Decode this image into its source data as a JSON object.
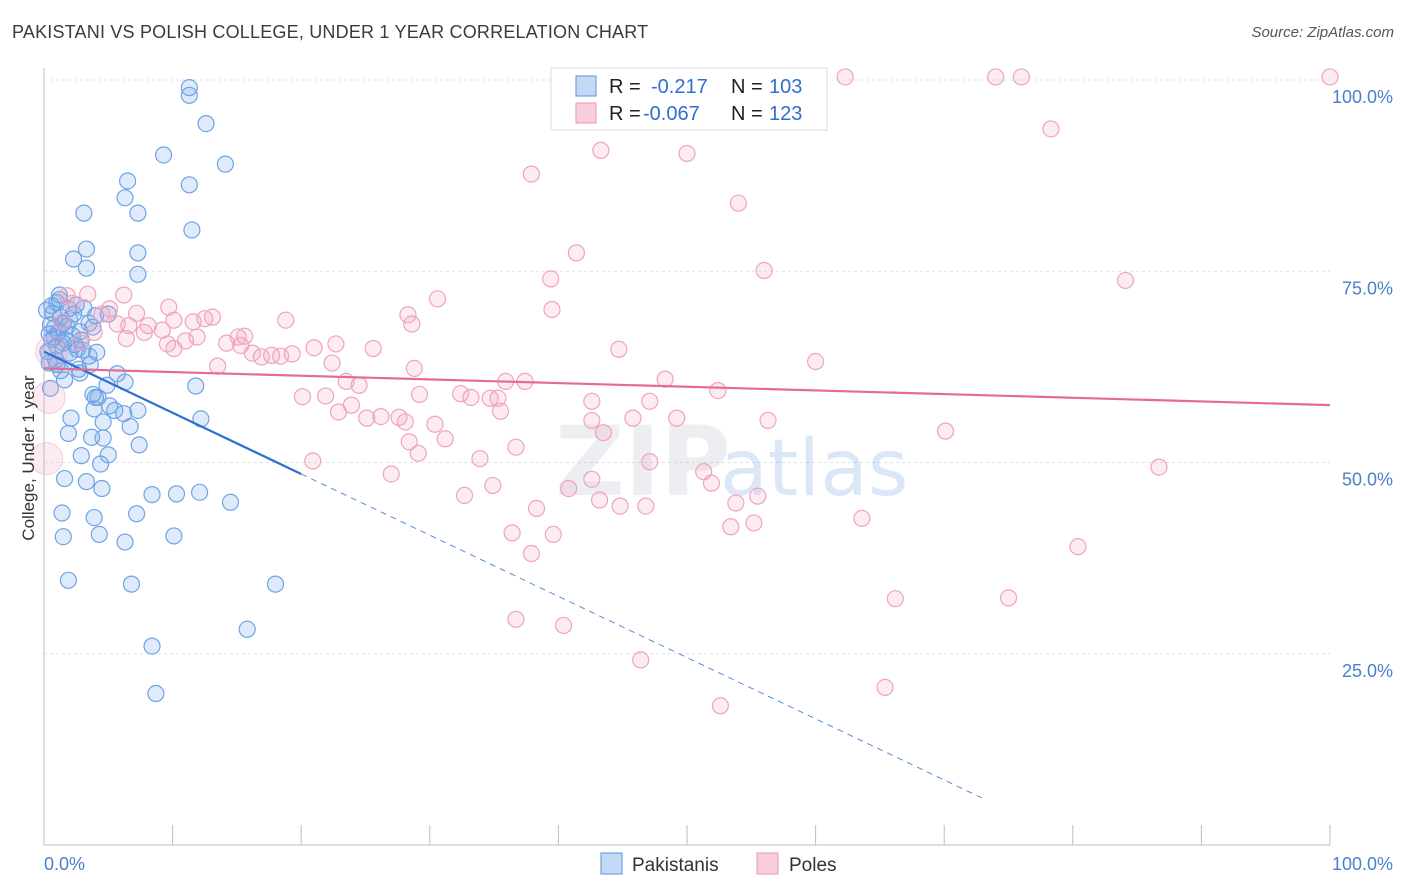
{
  "title": "PAKISTANI VS POLISH COLLEGE, UNDER 1 YEAR CORRELATION CHART",
  "source": "Source: ZipAtlas.com",
  "watermark": {
    "zip": "ZIP",
    "atlas": "atlas"
  },
  "colors": {
    "blue": "#6fa3e6",
    "blue_line": "#2d6fd1",
    "pink": "#f0a3bd",
    "pink_line": "#e56b97",
    "axis_text": "#4a7fc9",
    "grid": "#dde1e8"
  },
  "chart_data": {
    "type": "scatter",
    "title": "PAKISTANI VS POLISH COLLEGE, UNDER 1 YEAR CORRELATION CHART",
    "xlabel": "",
    "ylabel": "College, Under 1 year",
    "xlim": [
      0,
      100
    ],
    "ylim": [
      0,
      100
    ],
    "x_tick_labels": [
      "0.0%",
      "100.0%"
    ],
    "y_tick_labels": [
      "100.0%",
      "75.0%",
      "50.0%",
      "25.0%"
    ],
    "grid": true,
    "legend": {
      "placement": "top-center",
      "entries": [
        {
          "name": "Pakistanis",
          "r_label": "R =",
          "r": "-0.217",
          "n_label": "N =",
          "n": "103"
        },
        {
          "name": "Poles",
          "r_label": "R =",
          "r": "-0.067",
          "n_label": "N =",
          "n": "123"
        }
      ]
    },
    "series": [
      {
        "name": "Pakistanis",
        "color": "#6fa3e6",
        "trend": {
          "x": [
            0,
            20
          ],
          "y": [
            64.5,
            48.5
          ],
          "dashed_extension_to_x": 73
        },
        "points": [
          [
            11.3,
            99.0
          ],
          [
            11.3,
            98.0
          ],
          [
            12.6,
            94.3
          ],
          [
            9.3,
            90.2
          ],
          [
            14.1,
            89.0
          ],
          [
            6.5,
            86.8
          ],
          [
            11.3,
            86.3
          ],
          [
            6.3,
            84.6
          ],
          [
            3.1,
            82.6
          ],
          [
            7.3,
            82.6
          ],
          [
            11.5,
            80.4
          ],
          [
            3.3,
            77.9
          ],
          [
            7.3,
            77.4
          ],
          [
            2.3,
            76.6
          ],
          [
            3.3,
            75.4
          ],
          [
            7.3,
            74.6
          ],
          [
            1.0,
            70.9
          ],
          [
            3.1,
            70.2
          ],
          [
            2.3,
            69.4
          ],
          [
            1.3,
            69.0
          ],
          [
            2.0,
            68.7
          ],
          [
            1.5,
            68.2
          ],
          [
            0.8,
            67.6
          ],
          [
            2.8,
            67.1
          ],
          [
            4.0,
            69.2
          ],
          [
            5.0,
            69.4
          ],
          [
            3.8,
            67.7
          ],
          [
            0.8,
            66.4
          ],
          [
            1.5,
            65.6
          ],
          [
            2.6,
            64.8
          ],
          [
            2.0,
            64.3
          ],
          [
            3.5,
            63.9
          ],
          [
            1.0,
            62.8
          ],
          [
            2.7,
            62.2
          ],
          [
            2.8,
            61.7
          ],
          [
            5.7,
            61.6
          ],
          [
            6.3,
            60.5
          ],
          [
            4.9,
            60.1
          ],
          [
            0.5,
            59.7
          ],
          [
            3.8,
            58.9
          ],
          [
            4.0,
            58.5
          ],
          [
            5.1,
            57.4
          ],
          [
            3.9,
            57.0
          ],
          [
            2.1,
            55.8
          ],
          [
            4.6,
            55.3
          ],
          [
            6.2,
            56.4
          ],
          [
            7.3,
            56.8
          ],
          [
            12.2,
            55.7
          ],
          [
            1.9,
            53.8
          ],
          [
            3.7,
            53.3
          ],
          [
            4.6,
            53.2
          ],
          [
            6.7,
            54.7
          ],
          [
            7.4,
            52.3
          ],
          [
            2.9,
            50.9
          ],
          [
            4.4,
            49.8
          ],
          [
            1.6,
            47.9
          ],
          [
            4.5,
            46.6
          ],
          [
            8.4,
            45.8
          ],
          [
            10.3,
            45.9
          ],
          [
            12.1,
            46.1
          ],
          [
            14.5,
            44.8
          ],
          [
            1.4,
            43.4
          ],
          [
            3.9,
            42.8
          ],
          [
            7.2,
            43.3
          ],
          [
            1.5,
            40.3
          ],
          [
            4.3,
            40.6
          ],
          [
            6.3,
            39.6
          ],
          [
            10.1,
            40.4
          ],
          [
            1.9,
            34.6
          ],
          [
            6.8,
            34.1
          ],
          [
            18.0,
            34.1
          ],
          [
            15.8,
            28.2
          ],
          [
            8.4,
            26.0
          ],
          [
            8.7,
            19.8
          ],
          [
            0.5,
            68.0
          ],
          [
            0.4,
            66.8
          ],
          [
            0.6,
            70.5
          ],
          [
            1.2,
            71.3
          ],
          [
            2.5,
            70.6
          ],
          [
            3.5,
            68.2
          ],
          [
            1.1,
            67.0
          ],
          [
            0.3,
            64.5
          ],
          [
            1.7,
            66.0
          ],
          [
            2.4,
            65.4
          ],
          [
            0.9,
            63.4
          ],
          [
            1.3,
            62.0
          ],
          [
            4.2,
            58.5
          ],
          [
            0.7,
            69.5
          ],
          [
            1.8,
            67.8
          ],
          [
            2.2,
            66.6
          ],
          [
            1.0,
            65.2
          ],
          [
            3.0,
            64.7
          ],
          [
            0.4,
            63.0
          ],
          [
            1.6,
            60.8
          ],
          [
            5.5,
            56.8
          ],
          [
            5.0,
            51.0
          ],
          [
            3.3,
            47.5
          ],
          [
            1.2,
            71.9
          ],
          [
            0.2,
            69.9
          ],
          [
            2.9,
            66.0
          ],
          [
            4.1,
            64.4
          ],
          [
            0.6,
            66.1
          ],
          [
            3.6,
            62.8
          ],
          [
            1.9,
            70.1
          ],
          [
            11.8,
            60.0
          ]
        ],
        "big_points": [
          [
            1.0,
            64.0
          ]
        ]
      },
      {
        "name": "Poles",
        "color": "#f0a3bd",
        "trend": {
          "x": [
            0,
            100
          ],
          "y": [
            62.3,
            57.5
          ]
        },
        "points": [
          [
            62.3,
            100.4
          ],
          [
            74.0,
            100.4
          ],
          [
            76.0,
            100.4
          ],
          [
            100.0,
            100.4
          ],
          [
            78.3,
            93.6
          ],
          [
            43.3,
            90.8
          ],
          [
            50.0,
            90.4
          ],
          [
            37.9,
            87.7
          ],
          [
            54.0,
            83.9
          ],
          [
            41.4,
            77.4
          ],
          [
            39.4,
            74.0
          ],
          [
            56.0,
            75.1
          ],
          [
            84.1,
            73.8
          ],
          [
            30.6,
            71.4
          ],
          [
            28.3,
            69.3
          ],
          [
            28.6,
            68.1
          ],
          [
            39.5,
            70.0
          ],
          [
            4.5,
            69.4
          ],
          [
            1.8,
            71.8
          ],
          [
            3.4,
            72.0
          ],
          [
            2.2,
            70.8
          ],
          [
            5.1,
            70.1
          ],
          [
            6.6,
            67.9
          ],
          [
            6.4,
            66.2
          ],
          [
            7.8,
            67.0
          ],
          [
            8.1,
            67.9
          ],
          [
            9.2,
            67.3
          ],
          [
            10.1,
            68.6
          ],
          [
            11.6,
            68.4
          ],
          [
            12.5,
            68.8
          ],
          [
            11.9,
            66.4
          ],
          [
            11.0,
            65.9
          ],
          [
            14.2,
            65.6
          ],
          [
            15.3,
            65.3
          ],
          [
            15.1,
            66.4
          ],
          [
            16.2,
            64.3
          ],
          [
            16.9,
            63.8
          ],
          [
            17.7,
            64.0
          ],
          [
            18.4,
            63.9
          ],
          [
            19.3,
            64.2
          ],
          [
            21.0,
            65.0
          ],
          [
            22.4,
            63.0
          ],
          [
            25.6,
            64.9
          ],
          [
            28.8,
            62.3
          ],
          [
            23.5,
            60.6
          ],
          [
            24.5,
            60.1
          ],
          [
            21.9,
            58.7
          ],
          [
            20.1,
            58.6
          ],
          [
            22.9,
            56.6
          ],
          [
            23.9,
            57.5
          ],
          [
            26.2,
            56.0
          ],
          [
            27.6,
            55.9
          ],
          [
            28.1,
            55.3
          ],
          [
            29.2,
            58.9
          ],
          [
            30.4,
            55.0
          ],
          [
            31.2,
            53.1
          ],
          [
            32.4,
            59.0
          ],
          [
            33.2,
            58.5
          ],
          [
            34.7,
            58.4
          ],
          [
            35.9,
            60.6
          ],
          [
            37.4,
            60.6
          ],
          [
            35.5,
            56.7
          ],
          [
            36.7,
            52.0
          ],
          [
            33.9,
            50.5
          ],
          [
            34.9,
            47.0
          ],
          [
            29.1,
            51.2
          ],
          [
            20.9,
            50.2
          ],
          [
            42.6,
            58.0
          ],
          [
            42.6,
            55.5
          ],
          [
            43.5,
            53.9
          ],
          [
            45.8,
            55.8
          ],
          [
            49.2,
            55.8
          ],
          [
            47.1,
            58.0
          ],
          [
            48.3,
            60.9
          ],
          [
            52.4,
            59.4
          ],
          [
            56.3,
            55.5
          ],
          [
            44.7,
            64.8
          ],
          [
            35.3,
            58.4
          ],
          [
            47.1,
            50.1
          ],
          [
            51.3,
            48.8
          ],
          [
            51.9,
            47.3
          ],
          [
            42.6,
            47.8
          ],
          [
            40.8,
            46.6
          ],
          [
            43.2,
            45.1
          ],
          [
            44.8,
            44.3
          ],
          [
            46.8,
            44.3
          ],
          [
            53.8,
            44.7
          ],
          [
            55.5,
            45.6
          ],
          [
            39.6,
            40.6
          ],
          [
            37.9,
            38.1
          ],
          [
            38.3,
            44.0
          ],
          [
            36.4,
            40.8
          ],
          [
            53.4,
            41.6
          ],
          [
            55.2,
            42.1
          ],
          [
            63.6,
            42.7
          ],
          [
            66.2,
            32.2
          ],
          [
            75.0,
            32.3
          ],
          [
            80.4,
            39.0
          ],
          [
            86.7,
            49.4
          ],
          [
            65.4,
            20.6
          ],
          [
            60.0,
            63.2
          ],
          [
            70.1,
            54.1
          ],
          [
            36.7,
            29.5
          ],
          [
            40.4,
            28.7
          ],
          [
            46.4,
            24.2
          ],
          [
            52.6,
            18.2
          ],
          [
            32.7,
            45.7
          ],
          [
            28.4,
            52.7
          ],
          [
            27.0,
            48.5
          ],
          [
            25.1,
            55.8
          ],
          [
            13.1,
            69.0
          ],
          [
            9.6,
            65.5
          ],
          [
            15.6,
            66.5
          ],
          [
            22.7,
            65.5
          ],
          [
            18.8,
            68.6
          ],
          [
            13.5,
            62.6
          ],
          [
            10.1,
            64.9
          ],
          [
            5.7,
            68.1
          ],
          [
            2.8,
            65.7
          ],
          [
            3.9,
            67.0
          ],
          [
            7.2,
            69.5
          ],
          [
            1.4,
            68.4
          ],
          [
            9.7,
            70.3
          ],
          [
            6.2,
            71.9
          ]
        ],
        "big_points": [
          [
            0.4,
            58.5
          ],
          [
            0.2,
            50.5
          ],
          [
            0.6,
            64.5
          ]
        ]
      }
    ]
  }
}
